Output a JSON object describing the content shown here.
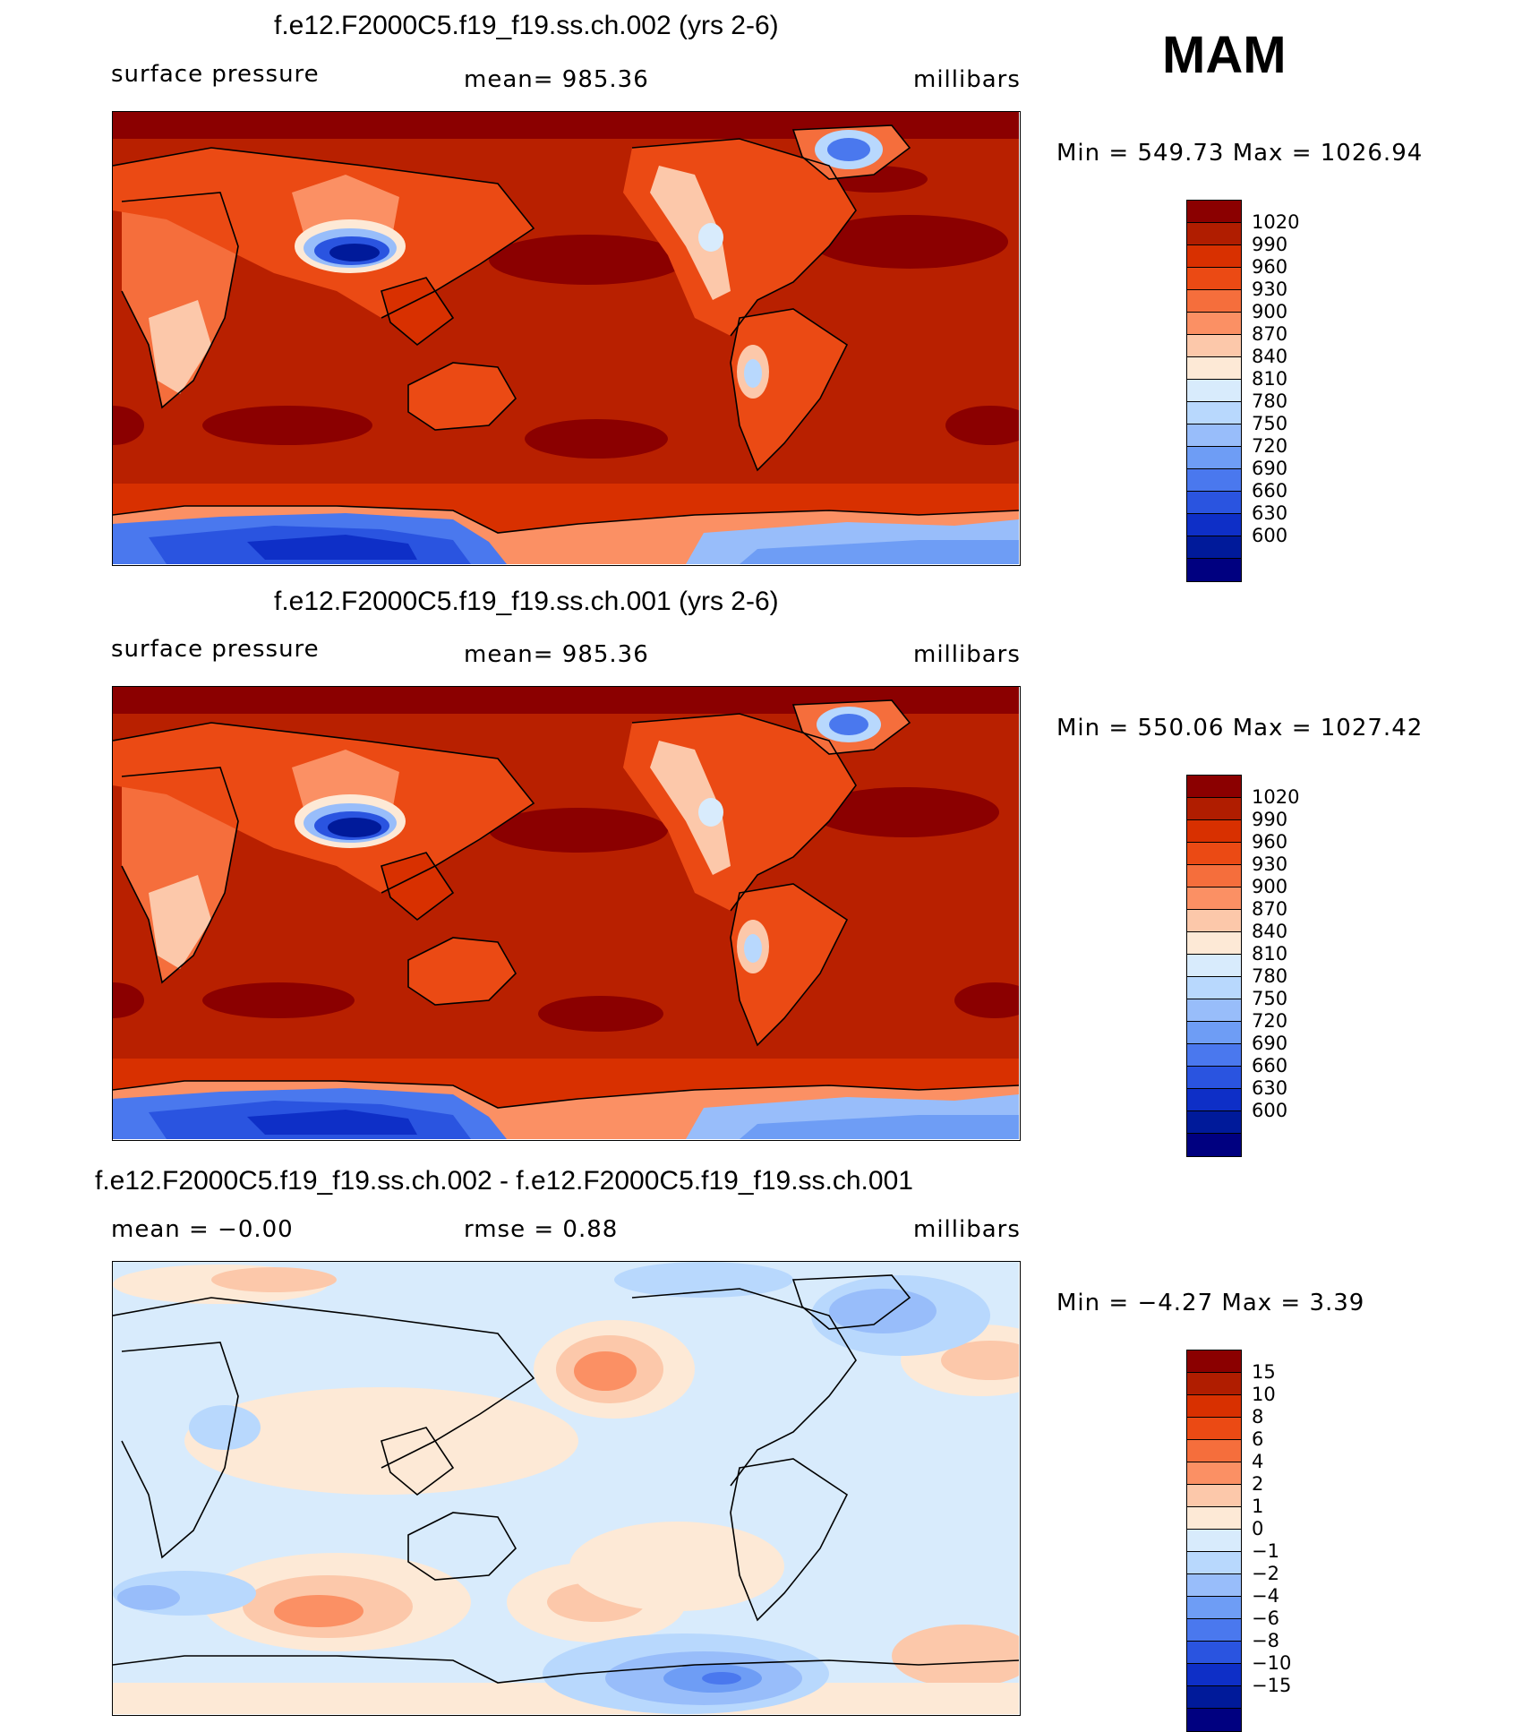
{
  "season": "MAM",
  "panels": [
    {
      "title": "f.e12.F2000C5.f19_f19.ss.ch.002 (yrs 2-6)",
      "left_label": "surface pressure",
      "center_label": "mean=  985.36",
      "units": "millibars",
      "minmax": "Min  =  549.73  Max  =  1026.94"
    },
    {
      "title": "f.e12.F2000C5.f19_f19.ss.ch.001 (yrs 2-6)",
      "left_label": "surface pressure",
      "center_label": "mean=  985.36",
      "units": "millibars",
      "minmax": "Min  =  550.06  Max  =  1027.42"
    },
    {
      "title": "f.e12.F2000C5.f19_f19.ss.ch.002 - f.e12.F2000C5.f19_f19.ss.ch.001",
      "left_label": "mean  =   −0.00",
      "center_label": "rmse  =     0.88",
      "units": "millibars",
      "minmax": "Min  =   −4.27  Max  =     3.39"
    }
  ],
  "colorbars": {
    "pressure": {
      "colors": [
        "#8b0000",
        "#b01d00",
        "#d83000",
        "#eb4a14",
        "#f56e3c",
        "#fb9064",
        "#fcc8aa",
        "#fde9d6",
        "#d8ebfc",
        "#b8d8fd",
        "#98bdfa",
        "#6e9df5",
        "#4a78ee",
        "#2a54e0",
        "#0e2fc7",
        "#001a9a",
        "#000080"
      ],
      "labels": [
        "1020",
        "990",
        "960",
        "930",
        "900",
        "870",
        "840",
        "810",
        "780",
        "750",
        "720",
        "690",
        "660",
        "630",
        "600"
      ]
    },
    "difference": {
      "colors": [
        "#8b0000",
        "#b01d00",
        "#d83000",
        "#eb4a14",
        "#f56e3c",
        "#fb9064",
        "#fcc8aa",
        "#fde9d6",
        "#d8ebfc",
        "#b8d8fd",
        "#98bdfa",
        "#6e9df5",
        "#4a78ee",
        "#2a54e0",
        "#0e2fc7",
        "#001a9a",
        "#000080"
      ],
      "labels": [
        "15",
        "10",
        "8",
        "6",
        "4",
        "2",
        "1",
        "0",
        "−1",
        "−2",
        "−4",
        "−6",
        "−8",
        "−10",
        "−15"
      ]
    }
  }
}
